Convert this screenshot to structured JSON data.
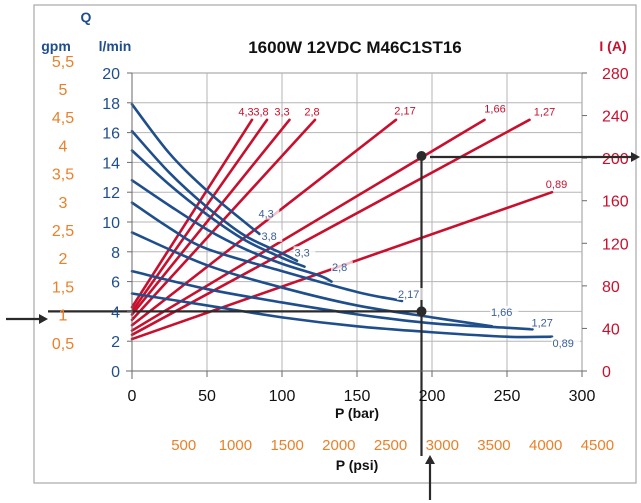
{
  "chart_data": {
    "type": "line",
    "title": "1600W 12VDC M46C1ST16",
    "header_q": "Q",
    "left_axes": {
      "gpm": {
        "label": "gpm",
        "ticks": [
          "0,5",
          "1",
          "1,5",
          "2",
          "2,5",
          "3",
          "3,5",
          "4",
          "4,5",
          "5",
          "5,5"
        ],
        "tick_values": [
          0.5,
          1,
          1.5,
          2,
          2.5,
          3,
          3.5,
          4,
          4.5,
          5,
          5.5
        ]
      },
      "lmin": {
        "label": "l/min",
        "ticks": [
          "0",
          "2",
          "4",
          "6",
          "8",
          "10",
          "12",
          "14",
          "16",
          "18",
          "20"
        ],
        "tick_values": [
          0,
          2,
          4,
          6,
          8,
          10,
          12,
          14,
          16,
          18,
          20
        ],
        "ylim": [
          0,
          20
        ]
      }
    },
    "right_axis": {
      "label": "I (A)",
      "ticks": [
        "0",
        "40",
        "80",
        "120",
        "160",
        "200",
        "240",
        "280"
      ],
      "tick_values": [
        0,
        40,
        80,
        120,
        160,
        200,
        240,
        280
      ],
      "ylim": [
        0,
        280
      ]
    },
    "x_axis_bar": {
      "label": "P (bar)",
      "ticks": [
        "0",
        "50",
        "100",
        "150",
        "200",
        "250",
        "300"
      ],
      "tick_values": [
        0,
        50,
        100,
        150,
        200,
        250,
        300
      ],
      "xlim": [
        0,
        300
      ]
    },
    "x_axis_psi": {
      "label": "P (psi)",
      "ticks": [
        "500",
        "1000",
        "1500",
        "2000",
        "2500",
        "3000",
        "3500",
        "4000",
        "4500"
      ],
      "tick_values": [
        500,
        1000,
        1500,
        2000,
        2500,
        3000,
        3500,
        4000,
        4500
      ]
    },
    "grid": true,
    "colors": {
      "flow": "#1f4e8c",
      "current": "#c8102e",
      "accent": "#e8812a",
      "marker": "#2a2a2a",
      "frame": "#a8a8a8"
    },
    "flow_series": [
      {
        "name": "4,3",
        "points": [
          [
            0,
            17.9
          ],
          [
            25,
            14.6
          ],
          [
            50,
            12.1
          ],
          [
            75,
            10
          ],
          [
            85,
            9.2
          ]
        ]
      },
      {
        "name": "3,8",
        "points": [
          [
            0,
            16.1
          ],
          [
            25,
            13.3
          ],
          [
            50,
            11
          ],
          [
            75,
            9.1
          ],
          [
            100,
            7.9
          ],
          [
            110,
            7.4
          ]
        ]
      },
      {
        "name": "3,3",
        "points": [
          [
            0,
            14.8
          ],
          [
            25,
            12.5
          ],
          [
            50,
            10.5
          ],
          [
            75,
            8.8
          ],
          [
            100,
            7.6
          ],
          [
            115,
            7
          ]
        ]
      },
      {
        "name": "2,8",
        "points": [
          [
            0,
            12.8
          ],
          [
            25,
            11.1
          ],
          [
            50,
            9.5
          ],
          [
            75,
            8.2
          ],
          [
            100,
            7.2
          ],
          [
            125,
            6.4
          ],
          [
            133,
            6
          ]
        ]
      },
      {
        "name": "2,17",
        "points": [
          [
            0,
            11.3
          ],
          [
            25,
            9.6
          ],
          [
            50,
            8.2
          ],
          [
            100,
            6.7
          ],
          [
            150,
            5.3
          ],
          [
            175,
            4.8
          ],
          [
            180,
            4.7
          ]
        ]
      },
      {
        "name": "1,66",
        "points": [
          [
            0,
            9.3
          ],
          [
            50,
            7.1
          ],
          [
            100,
            5.6
          ],
          [
            150,
            4.4
          ],
          [
            200,
            3.6
          ],
          [
            240,
            3
          ]
        ]
      },
      {
        "name": "1,27",
        "points": [
          [
            0,
            6.7
          ],
          [
            50,
            5.5
          ],
          [
            100,
            4.6
          ],
          [
            150,
            3.8
          ],
          [
            200,
            3.2
          ],
          [
            250,
            2.9
          ],
          [
            267,
            2.8
          ]
        ]
      },
      {
        "name": "0,89",
        "points": [
          [
            0,
            5.2
          ],
          [
            50,
            4.4
          ],
          [
            100,
            3.6
          ],
          [
            150,
            3
          ],
          [
            200,
            2.6
          ],
          [
            250,
            2.3
          ],
          [
            280,
            2.3
          ]
        ]
      }
    ],
    "current_series": [
      {
        "name": "4,3",
        "points": [
          [
            0,
            60
          ],
          [
            80,
            236
          ]
        ]
      },
      {
        "name": "3,8",
        "points": [
          [
            0,
            56
          ],
          [
            90,
            236
          ]
        ]
      },
      {
        "name": "3,3",
        "points": [
          [
            0,
            53
          ],
          [
            105,
            236
          ]
        ]
      },
      {
        "name": "2,8",
        "points": [
          [
            0,
            48
          ],
          [
            122,
            236
          ]
        ]
      },
      {
        "name": "2,17",
        "points": [
          [
            0,
            43
          ],
          [
            176,
            236
          ]
        ]
      },
      {
        "name": "1,66",
        "points": [
          [
            0,
            38
          ],
          [
            235,
            236
          ]
        ]
      },
      {
        "name": "1,27",
        "points": [
          [
            0,
            34
          ],
          [
            265,
            236
          ]
        ]
      },
      {
        "name": "0,89",
        "points": [
          [
            0,
            30
          ],
          [
            280,
            168
          ]
        ]
      }
    ],
    "flow_label_positions": [
      [
        83,
        10.3
      ],
      [
        85,
        8.8
      ],
      [
        107,
        7.7
      ],
      [
        132,
        6.7
      ],
      [
        176,
        4.9
      ],
      [
        238,
        3.7
      ],
      [
        265,
        3
      ],
      [
        279,
        1.6
      ]
    ],
    "current_label_positions": [
      [
        76,
        240
      ],
      [
        86,
        240
      ],
      [
        100,
        240
      ],
      [
        120,
        240
      ],
      [
        182,
        241
      ],
      [
        242,
        243
      ],
      [
        275,
        240
      ],
      [
        283,
        172
      ]
    ],
    "markers": {
      "flow_point": [
        193,
        4
      ],
      "current_point": [
        193,
        202
      ],
      "flow_value_label": "1",
      "psi_value_label": "3000"
    }
  }
}
